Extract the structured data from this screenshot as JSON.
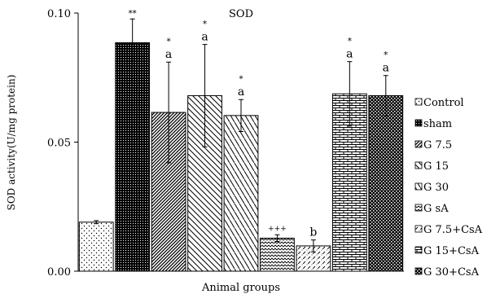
{
  "chart_data": {
    "type": "bar",
    "title": "SOD",
    "xlabel": "Animal groups",
    "ylabel": "SOD activity(U/mg protein)",
    "ylim": [
      0,
      0.1
    ],
    "yticks": [
      "0.00",
      "0.05",
      "0.10"
    ],
    "grid": false,
    "legend_position": "right",
    "categories": [
      "Control",
      "sham",
      "G 7.5",
      "G 15",
      "G 30",
      "G sA",
      "G 7.5+CsA",
      "G 15+CsA",
      "G 30+CsA"
    ],
    "values": [
      0.019,
      0.0885,
      0.0615,
      0.068,
      0.0603,
      0.0128,
      0.0098,
      0.0687,
      0.068
    ],
    "errors": [
      0.0006,
      0.0092,
      0.0195,
      0.0198,
      0.0062,
      0.0013,
      0.0023,
      0.0125,
      0.0078
    ],
    "annotations": [
      {
        "star": "",
        "letter": ""
      },
      {
        "star": "**",
        "letter": ""
      },
      {
        "star": "*",
        "letter": "a"
      },
      {
        "star": "*",
        "letter": "a"
      },
      {
        "star": "*",
        "letter": "a"
      },
      {
        "star": "",
        "letter": "+++"
      },
      {
        "star": "",
        "letter": "b"
      },
      {
        "star": "*",
        "letter": "a"
      },
      {
        "star": "*",
        "letter": "a"
      }
    ],
    "patterns": [
      "sparse-dots",
      "dense-dots",
      "diagonal-tight",
      "diagonal-wide",
      "diagonal-wide-steep",
      "zigzag",
      "diagonal-dashes",
      "bricks",
      "checker-dots"
    ],
    "colors": {
      "bar_ink": "#000000",
      "bar_background": "#ffffff",
      "axis": "#000000"
    }
  }
}
